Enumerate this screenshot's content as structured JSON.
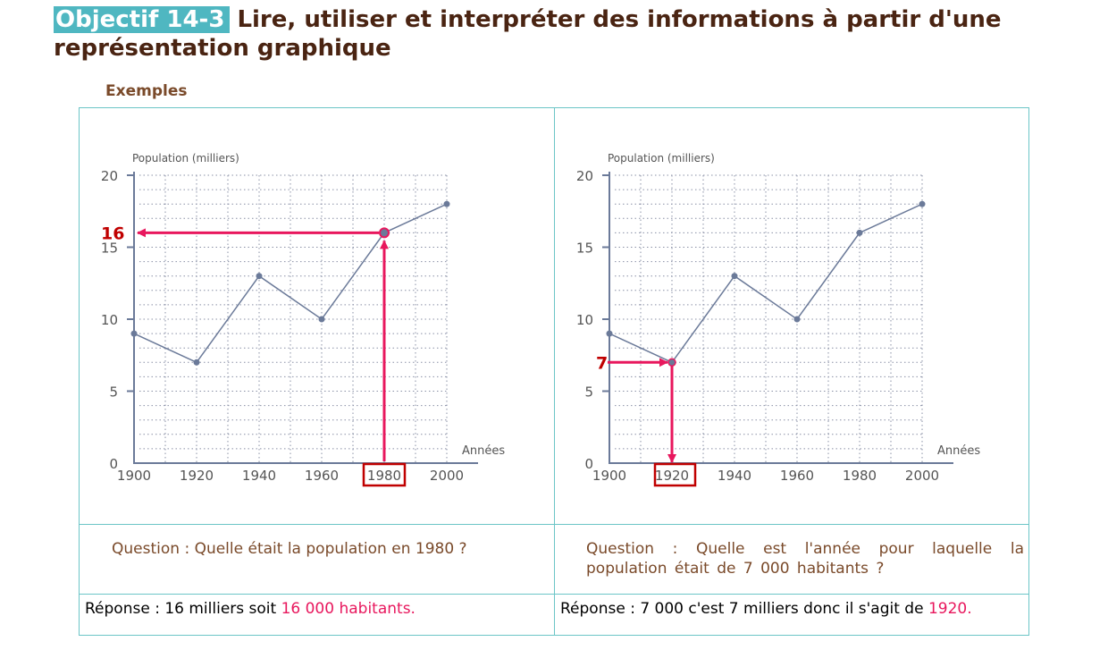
{
  "header": {
    "badge": "Objectif 14-3",
    "title": "Lire, utiliser et interpréter des informations à partir d'une représentation graphique"
  },
  "section_label": "Exemples",
  "examples": [
    {
      "question": "Question : Quelle était la population en 1980 ?",
      "answer_prefix": "Réponse : 16 milliers soit ",
      "answer_highlight": "16 000 habitants."
    },
    {
      "question": "Question : Quelle est l'année pour laquelle la population était de 7 000 habitants ?",
      "answer_prefix": "Réponse : 7 000 c'est 7 milliers donc il s'agit de ",
      "answer_highlight": "1920."
    }
  ],
  "chart_data": [
    {
      "type": "line",
      "ylabel": "Population (milliers)",
      "xlabel": "Années",
      "x": [
        1900,
        1920,
        1940,
        1960,
        1980,
        2000
      ],
      "y": [
        9,
        7,
        13,
        10,
        16,
        18
      ],
      "xlim": [
        1900,
        2000
      ],
      "ylim": [
        0,
        20
      ],
      "yticks": [
        0,
        5,
        10,
        15,
        20
      ],
      "grid": true,
      "annotation": {
        "read_label": "16",
        "year": "1980",
        "value": 16,
        "direction": "x-to-y"
      }
    },
    {
      "type": "line",
      "ylabel": "Population (milliers)",
      "xlabel": "Années",
      "x": [
        1900,
        1920,
        1940,
        1960,
        1980,
        2000
      ],
      "y": [
        9,
        7,
        13,
        10,
        16,
        18
      ],
      "xlim": [
        1900,
        2000
      ],
      "ylim": [
        0,
        20
      ],
      "yticks": [
        0,
        5,
        10,
        15,
        20
      ],
      "grid": true,
      "annotation": {
        "read_label": "7",
        "year": "1920",
        "value": 7,
        "direction": "y-to-x"
      }
    }
  ],
  "colors": {
    "accent": "#e8175d",
    "box": "#c00000",
    "line": "#6b7a99",
    "teal": "#4fb7c1"
  }
}
